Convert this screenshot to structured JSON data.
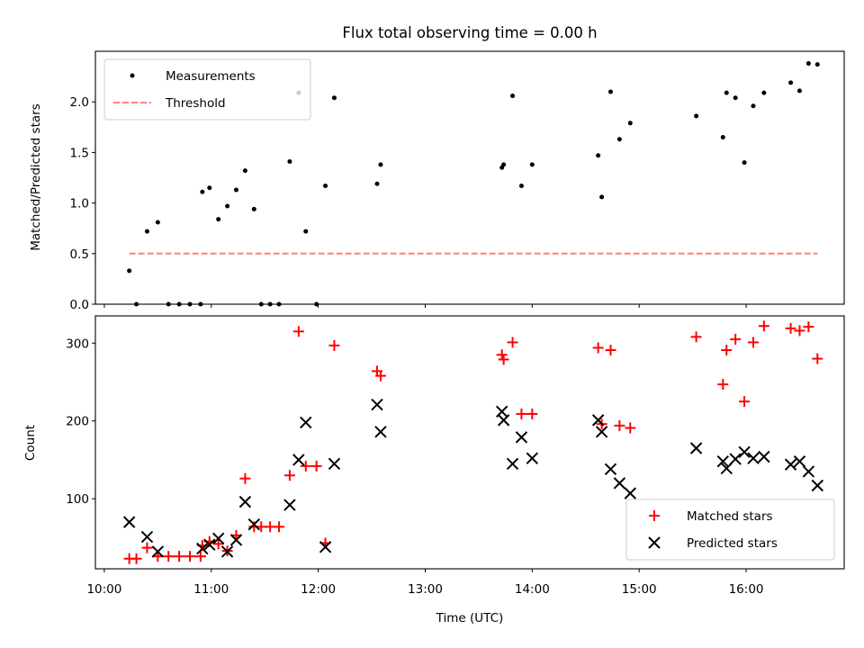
{
  "chart_data": [
    {
      "type": "scatter",
      "title": "Flux total observing time = 0.00 h",
      "xlabel": "",
      "ylabel": "Matched/Predicted stars",
      "xlim": [
        "09:55",
        "16:55"
      ],
      "ylim": [
        0,
        2.5
      ],
      "yticks": [
        0.0,
        0.5,
        1.0,
        1.5,
        2.0
      ],
      "ytick_labels": [
        "0.0",
        "0.5",
        "1.0",
        "1.5",
        "2.0"
      ],
      "grid": false,
      "legend_position": "top-left",
      "series": [
        {
          "name": "Measurements",
          "marker": "dot",
          "color": "#000000",
          "points": [
            [
              "10:14",
              0.33
            ],
            [
              "10:18",
              0.0
            ],
            [
              "10:24",
              0.72
            ],
            [
              "10:30",
              0.81
            ],
            [
              "10:36",
              0.0
            ],
            [
              "10:42",
              0.0
            ],
            [
              "10:48",
              0.0
            ],
            [
              "10:54",
              0.0
            ],
            [
              "10:55",
              1.11
            ],
            [
              "10:59",
              1.15
            ],
            [
              "11:04",
              0.84
            ],
            [
              "11:09",
              0.97
            ],
            [
              "11:14",
              1.13
            ],
            [
              "11:19",
              1.32
            ],
            [
              "11:24",
              0.94
            ],
            [
              "11:28",
              0.0
            ],
            [
              "11:33",
              0.0
            ],
            [
              "11:38",
              0.0
            ],
            [
              "11:44",
              1.41
            ],
            [
              "11:49",
              2.09
            ],
            [
              "11:53",
              0.72
            ],
            [
              "11:59",
              0.0
            ],
            [
              "12:04",
              1.17
            ],
            [
              "12:09",
              2.04
            ],
            [
              "12:33",
              1.19
            ],
            [
              "12:35",
              1.38
            ],
            [
              "13:43",
              1.35
            ],
            [
              "13:44",
              1.38
            ],
            [
              "13:49",
              2.06
            ],
            [
              "13:54",
              1.17
            ],
            [
              "14:00",
              1.38
            ],
            [
              "14:37",
              1.47
            ],
            [
              "14:39",
              1.06
            ],
            [
              "14:44",
              2.1
            ],
            [
              "14:49",
              1.63
            ],
            [
              "14:55",
              1.79
            ],
            [
              "15:32",
              1.86
            ],
            [
              "15:47",
              1.65
            ],
            [
              "15:49",
              2.09
            ],
            [
              "15:54",
              2.04
            ],
            [
              "15:59",
              1.4
            ],
            [
              "16:04",
              1.96
            ],
            [
              "16:10",
              2.09
            ],
            [
              "16:25",
              2.19
            ],
            [
              "16:30",
              2.11
            ],
            [
              "16:35",
              2.38
            ],
            [
              "16:40",
              2.37
            ]
          ]
        },
        {
          "name": "Threshold",
          "kind": "dashed-line",
          "color": "#ff7f7f",
          "points": [
            [
              "10:14",
              0.5
            ],
            [
              "16:40",
              0.5
            ]
          ]
        }
      ]
    },
    {
      "type": "scatter",
      "title": "",
      "xlabel": "Time (UTC)",
      "ylabel": "Count",
      "xlim": [
        "09:55",
        "16:55"
      ],
      "ylim": [
        10,
        335
      ],
      "yticks": [
        100,
        200,
        300
      ],
      "ytick_labels": [
        "100",
        "200",
        "300"
      ],
      "xticks": [
        "10:00",
        "11:00",
        "12:00",
        "13:00",
        "14:00",
        "15:00",
        "16:00"
      ],
      "xtick_labels": [
        "10:00",
        "11:00",
        "12:00",
        "13:00",
        "14:00",
        "15:00",
        "16:00"
      ],
      "grid": false,
      "legend_position": "bottom-right",
      "series": [
        {
          "name": "Matched stars",
          "marker": "plus",
          "color": "#ff0000",
          "points": [
            [
              "10:14",
              23
            ],
            [
              "10:18",
              23
            ],
            [
              "10:24",
              37
            ],
            [
              "10:30",
              26
            ],
            [
              "10:36",
              26
            ],
            [
              "10:42",
              26
            ],
            [
              "10:48",
              26
            ],
            [
              "10:54",
              26
            ],
            [
              "10:55",
              40
            ],
            [
              "10:59",
              45
            ],
            [
              "11:04",
              42
            ],
            [
              "11:09",
              33
            ],
            [
              "11:14",
              53
            ],
            [
              "11:19",
              126
            ],
            [
              "11:24",
              64
            ],
            [
              "11:28",
              64
            ],
            [
              "11:33",
              64
            ],
            [
              "11:38",
              64
            ],
            [
              "11:44",
              130
            ],
            [
              "11:49",
              315
            ],
            [
              "11:53",
              142
            ],
            [
              "11:59",
              142
            ],
            [
              "12:04",
              43
            ],
            [
              "12:09",
              297
            ],
            [
              "12:33",
              264
            ],
            [
              "12:35",
              258
            ],
            [
              "13:43",
              285
            ],
            [
              "13:44",
              279
            ],
            [
              "13:49",
              301
            ],
            [
              "13:54",
              209
            ],
            [
              "14:00",
              209
            ],
            [
              "14:37",
              294
            ],
            [
              "14:39",
              196
            ],
            [
              "14:44",
              291
            ],
            [
              "14:49",
              194
            ],
            [
              "14:55",
              191
            ],
            [
              "15:32",
              308
            ],
            [
              "15:47",
              247
            ],
            [
              "15:49",
              291
            ],
            [
              "15:54",
              305
            ],
            [
              "15:59",
              225
            ],
            [
              "16:04",
              301
            ],
            [
              "16:10",
              322
            ],
            [
              "16:25",
              319
            ],
            [
              "16:30",
              316
            ],
            [
              "16:35",
              321
            ],
            [
              "16:40",
              280
            ]
          ]
        },
        {
          "name": "Predicted stars",
          "marker": "x",
          "color": "#000000",
          "points": [
            [
              "10:14",
              70
            ],
            [
              "10:24",
              51
            ],
            [
              "10:30",
              32
            ],
            [
              "10:55",
              36
            ],
            [
              "10:59",
              41
            ],
            [
              "11:04",
              49
            ],
            [
              "11:09",
              32
            ],
            [
              "11:14",
              47
            ],
            [
              "11:19",
              96
            ],
            [
              "11:24",
              67
            ],
            [
              "11:44",
              92
            ],
            [
              "11:49",
              150
            ],
            [
              "11:53",
              198
            ],
            [
              "12:04",
              38
            ],
            [
              "12:09",
              145
            ],
            [
              "12:33",
              221
            ],
            [
              "12:35",
              186
            ],
            [
              "13:43",
              212
            ],
            [
              "13:44",
              201
            ],
            [
              "13:49",
              145
            ],
            [
              "13:54",
              179
            ],
            [
              "14:00",
              152
            ],
            [
              "14:37",
              201
            ],
            [
              "14:39",
              186
            ],
            [
              "14:44",
              138
            ],
            [
              "14:49",
              120
            ],
            [
              "14:55",
              107
            ],
            [
              "15:32",
              165
            ],
            [
              "15:47",
              148
            ],
            [
              "15:49",
              139
            ],
            [
              "15:54",
              151
            ],
            [
              "15:59",
              160
            ],
            [
              "16:04",
              152
            ],
            [
              "16:10",
              154
            ],
            [
              "16:25",
              144
            ],
            [
              "16:30",
              148
            ],
            [
              "16:35",
              135
            ],
            [
              "16:40",
              117
            ]
          ]
        }
      ]
    }
  ]
}
